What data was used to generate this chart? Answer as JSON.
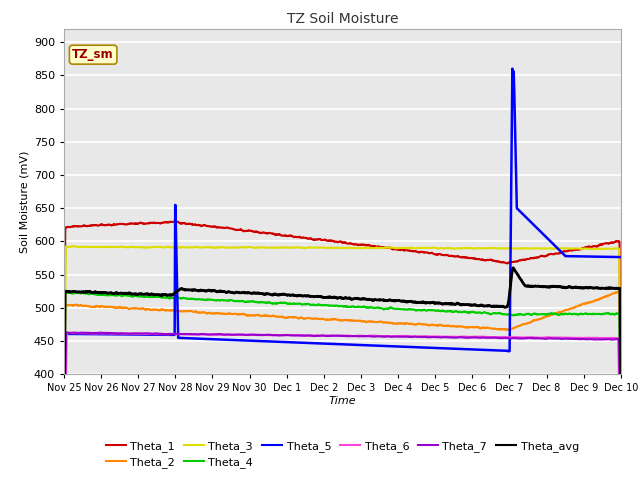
{
  "title": "TZ Soil Moisture",
  "xlabel": "Time",
  "ylabel": "Soil Moisture (mV)",
  "ylim": [
    400,
    920
  ],
  "yticks": [
    400,
    450,
    500,
    550,
    600,
    650,
    700,
    750,
    800,
    850,
    900
  ],
  "fig_bg": "#ffffff",
  "plot_bg": "#e8e8e8",
  "grid_color": "#ffffff",
  "legend_label": "TZ_sm",
  "series_colors": {
    "Theta_1": "#cc0000",
    "Theta_2": "#ff8800",
    "Theta_3": "#dddd00",
    "Theta_4": "#00cc00",
    "Theta_5": "#0000ff",
    "Theta_6": "#ff44dd",
    "Theta_7": "#9900cc",
    "Theta_avg": "#000000"
  },
  "x_tick_labels": [
    "Nov 25",
    "Nov 26",
    "Nov 27",
    "Nov 28",
    "Nov 29",
    "Nov 30",
    "Dec 1",
    "Dec 2",
    "Dec 3",
    "Dec 4",
    "Dec 5",
    "Dec 6",
    "Dec 7",
    "Dec 8",
    "Dec 9",
    "Dec 10"
  ]
}
